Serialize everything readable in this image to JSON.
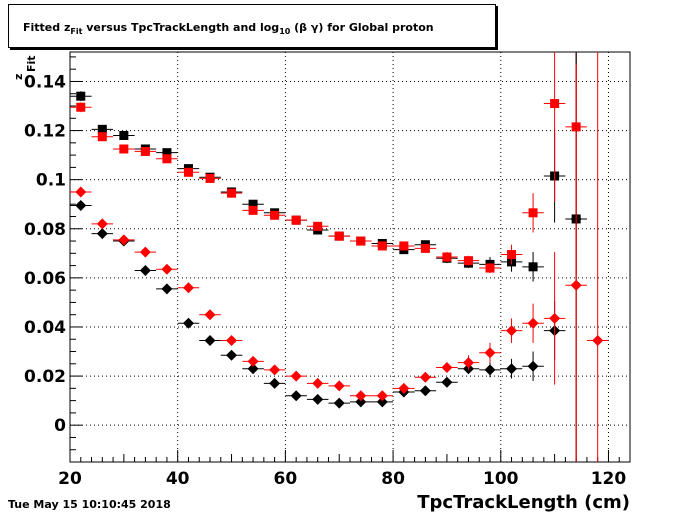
{
  "chart_data": {
    "type": "scatter",
    "title_parts": {
      "pre": "Fitted  z",
      "sub1": "Fit",
      "mid": "  versus TpcTrackLength and log",
      "sub2": "10",
      "post": " (β γ) for Global proton"
    },
    "xlabel": "TpcTrackLength (cm)",
    "ylabel_parts": {
      "main": "z",
      "sub": "Fit"
    },
    "xlim": [
      20,
      124
    ],
    "ylim": [
      -0.015,
      0.152
    ],
    "x_ticks": [
      20,
      40,
      60,
      80,
      100,
      120
    ],
    "y_ticks": [
      0,
      0.02,
      0.04,
      0.06,
      0.08,
      0.1,
      0.12,
      0.14
    ],
    "y_tick_labels": [
      "0",
      "0.02",
      "0.04",
      "0.06",
      "0.08",
      "0.1",
      "0.12",
      "0.14"
    ],
    "grid": true,
    "series": [
      {
        "marker": "square",
        "color": "#000000",
        "points": [
          {
            "x": 22,
            "y": 0.134,
            "err": 0.002
          },
          {
            "x": 26,
            "y": 0.1205,
            "err": 0.0015
          },
          {
            "x": 30,
            "y": 0.118,
            "err": 0.0015
          },
          {
            "x": 34,
            "y": 0.1125,
            "err": 0.0015
          },
          {
            "x": 38,
            "y": 0.111,
            "err": 0.0015
          },
          {
            "x": 42,
            "y": 0.1045,
            "err": 0.0015
          },
          {
            "x": 46,
            "y": 0.101,
            "err": 0.0015
          },
          {
            "x": 50,
            "y": 0.095,
            "err": 0.0015
          },
          {
            "x": 54,
            "y": 0.09,
            "err": 0.0015
          },
          {
            "x": 58,
            "y": 0.0865,
            "err": 0.0015
          },
          {
            "x": 62,
            "y": 0.0835,
            "err": 0.0015
          },
          {
            "x": 66,
            "y": 0.0795,
            "err": 0.0015
          },
          {
            "x": 70,
            "y": 0.077,
            "err": 0.0015
          },
          {
            "x": 74,
            "y": 0.075,
            "err": 0.0015
          },
          {
            "x": 78,
            "y": 0.074,
            "err": 0.0015
          },
          {
            "x": 82,
            "y": 0.0715,
            "err": 0.0015
          },
          {
            "x": 86,
            "y": 0.0735,
            "err": 0.0015
          },
          {
            "x": 90,
            "y": 0.068,
            "err": 0.002
          },
          {
            "x": 94,
            "y": 0.066,
            "err": 0.002
          },
          {
            "x": 98,
            "y": 0.0655,
            "err": 0.003
          },
          {
            "x": 102,
            "y": 0.0665,
            "err": 0.004
          },
          {
            "x": 106,
            "y": 0.0645,
            "err": 0.006
          },
          {
            "x": 110,
            "y": 0.1015,
            "err": 0.019
          },
          {
            "x": 114,
            "y": 0.084,
            "err": 0.1
          }
        ]
      },
      {
        "marker": "square",
        "color": "#ff0000",
        "points": [
          {
            "x": 22,
            "y": 0.1295,
            "err": 0.002
          },
          {
            "x": 26,
            "y": 0.1175,
            "err": 0.0015
          },
          {
            "x": 30,
            "y": 0.1125,
            "err": 0.0015
          },
          {
            "x": 34,
            "y": 0.1115,
            "err": 0.0015
          },
          {
            "x": 38,
            "y": 0.1085,
            "err": 0.0015
          },
          {
            "x": 42,
            "y": 0.103,
            "err": 0.0015
          },
          {
            "x": 46,
            "y": 0.1005,
            "err": 0.0015
          },
          {
            "x": 50,
            "y": 0.0945,
            "err": 0.0015
          },
          {
            "x": 54,
            "y": 0.0875,
            "err": 0.0015
          },
          {
            "x": 58,
            "y": 0.0855,
            "err": 0.0015
          },
          {
            "x": 62,
            "y": 0.0835,
            "err": 0.0015
          },
          {
            "x": 66,
            "y": 0.081,
            "err": 0.0015
          },
          {
            "x": 70,
            "y": 0.077,
            "err": 0.0015
          },
          {
            "x": 74,
            "y": 0.075,
            "err": 0.0015
          },
          {
            "x": 78,
            "y": 0.073,
            "err": 0.0015
          },
          {
            "x": 82,
            "y": 0.073,
            "err": 0.0015
          },
          {
            "x": 86,
            "y": 0.072,
            "err": 0.0015
          },
          {
            "x": 90,
            "y": 0.0685,
            "err": 0.002
          },
          {
            "x": 94,
            "y": 0.067,
            "err": 0.002
          },
          {
            "x": 98,
            "y": 0.064,
            "err": 0.002
          },
          {
            "x": 102,
            "y": 0.0695,
            "err": 0.004
          },
          {
            "x": 106,
            "y": 0.0865,
            "err": 0.008
          },
          {
            "x": 110,
            "y": 0.131,
            "err": 0.04
          },
          {
            "x": 114,
            "y": 0.1215,
            "err": 0.06
          }
        ]
      },
      {
        "marker": "diamond",
        "color": "#000000",
        "points": [
          {
            "x": 22,
            "y": 0.0895,
            "err": 0.002
          },
          {
            "x": 26,
            "y": 0.078,
            "err": 0.0015
          },
          {
            "x": 30,
            "y": 0.075,
            "err": 0.0015
          },
          {
            "x": 34,
            "y": 0.063,
            "err": 0.0015
          },
          {
            "x": 38,
            "y": 0.0555,
            "err": 0.0015
          },
          {
            "x": 42,
            "y": 0.0415,
            "err": 0.0015
          },
          {
            "x": 46,
            "y": 0.0345,
            "err": 0.0015
          },
          {
            "x": 50,
            "y": 0.0285,
            "err": 0.0015
          },
          {
            "x": 54,
            "y": 0.023,
            "err": 0.0015
          },
          {
            "x": 58,
            "y": 0.017,
            "err": 0.0015
          },
          {
            "x": 62,
            "y": 0.012,
            "err": 0.0015
          },
          {
            "x": 66,
            "y": 0.0105,
            "err": 0.0015
          },
          {
            "x": 70,
            "y": 0.009,
            "err": 0.0015
          },
          {
            "x": 74,
            "y": 0.0095,
            "err": 0.0015
          },
          {
            "x": 78,
            "y": 0.0095,
            "err": 0.0015
          },
          {
            "x": 82,
            "y": 0.0135,
            "err": 0.0015
          },
          {
            "x": 86,
            "y": 0.014,
            "err": 0.0015
          },
          {
            "x": 90,
            "y": 0.0175,
            "err": 0.002
          },
          {
            "x": 94,
            "y": 0.023,
            "err": 0.002
          },
          {
            "x": 98,
            "y": 0.0225,
            "err": 0.003
          },
          {
            "x": 102,
            "y": 0.023,
            "err": 0.004
          },
          {
            "x": 106,
            "y": 0.024,
            "err": 0.006
          },
          {
            "x": 110,
            "y": 0.0385,
            "err": 0.012
          },
          {
            "x": 114,
            "y": 0.084,
            "err": 0.1
          }
        ]
      },
      {
        "marker": "diamond",
        "color": "#ff0000",
        "points": [
          {
            "x": 22,
            "y": 0.095,
            "err": 0.002
          },
          {
            "x": 26,
            "y": 0.082,
            "err": 0.0015
          },
          {
            "x": 30,
            "y": 0.0755,
            "err": 0.0015
          },
          {
            "x": 34,
            "y": 0.0705,
            "err": 0.0015
          },
          {
            "x": 38,
            "y": 0.0635,
            "err": 0.0015
          },
          {
            "x": 42,
            "y": 0.056,
            "err": 0.0015
          },
          {
            "x": 46,
            "y": 0.045,
            "err": 0.0015
          },
          {
            "x": 50,
            "y": 0.0345,
            "err": 0.0015
          },
          {
            "x": 54,
            "y": 0.026,
            "err": 0.0015
          },
          {
            "x": 58,
            "y": 0.0225,
            "err": 0.0015
          },
          {
            "x": 62,
            "y": 0.02,
            "err": 0.0015
          },
          {
            "x": 66,
            "y": 0.017,
            "err": 0.0015
          },
          {
            "x": 70,
            "y": 0.016,
            "err": 0.0015
          },
          {
            "x": 74,
            "y": 0.012,
            "err": 0.0015
          },
          {
            "x": 78,
            "y": 0.012,
            "err": 0.0015
          },
          {
            "x": 82,
            "y": 0.015,
            "err": 0.0015
          },
          {
            "x": 86,
            "y": 0.0195,
            "err": 0.0015
          },
          {
            "x": 90,
            "y": 0.0235,
            "err": 0.002
          },
          {
            "x": 94,
            "y": 0.0255,
            "err": 0.003
          },
          {
            "x": 98,
            "y": 0.0295,
            "err": 0.004
          },
          {
            "x": 102,
            "y": 0.0385,
            "err": 0.005
          },
          {
            "x": 106,
            "y": 0.0415,
            "err": 0.008
          },
          {
            "x": 110,
            "y": 0.0435,
            "err": 0.027
          },
          {
            "x": 114,
            "y": 0.057,
            "err": 0.09
          },
          {
            "x": 118,
            "y": 0.0345,
            "err": 0.12
          }
        ]
      }
    ]
  },
  "footer": {
    "datestamp": "Tue May 15 10:10:45 2018"
  }
}
